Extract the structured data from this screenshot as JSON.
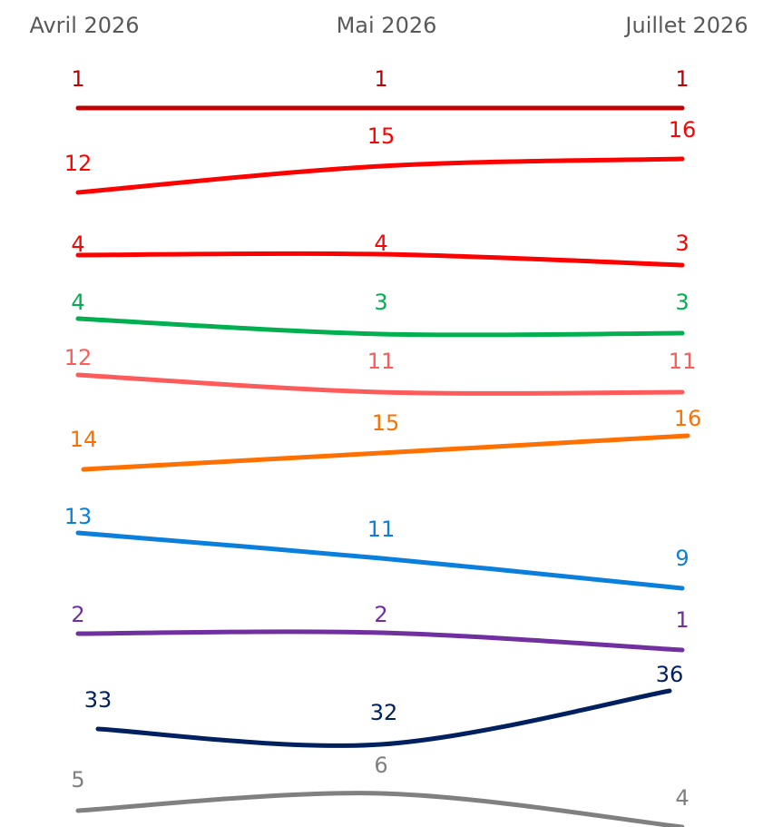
{
  "chart_data": {
    "type": "line",
    "categories": [
      "Avril 2026",
      "Mai 2026",
      "Juillet 2026"
    ],
    "grid": false,
    "legend": "none",
    "series": [
      {
        "color": "#C00000",
        "values": [
          1,
          1,
          1
        ]
      },
      {
        "color": "#FF0000",
        "values": [
          12,
          15,
          16
        ]
      },
      {
        "color": "#FF0000",
        "values": [
          4,
          4,
          3
        ]
      },
      {
        "color": "#00B050",
        "values": [
          4,
          3,
          3
        ]
      },
      {
        "color": "#FF5B5B",
        "values": [
          12,
          11,
          11
        ]
      },
      {
        "color": "#FF7000",
        "values": [
          14,
          15,
          16
        ]
      },
      {
        "color": "#0B7FDC",
        "values": [
          13,
          11,
          9
        ]
      },
      {
        "color": "#7030A0",
        "values": [
          2,
          2,
          1
        ]
      },
      {
        "color": "#002060",
        "values": [
          33,
          32,
          36
        ]
      },
      {
        "color": "#808080",
        "values": [
          5,
          6,
          4
        ]
      }
    ]
  }
}
